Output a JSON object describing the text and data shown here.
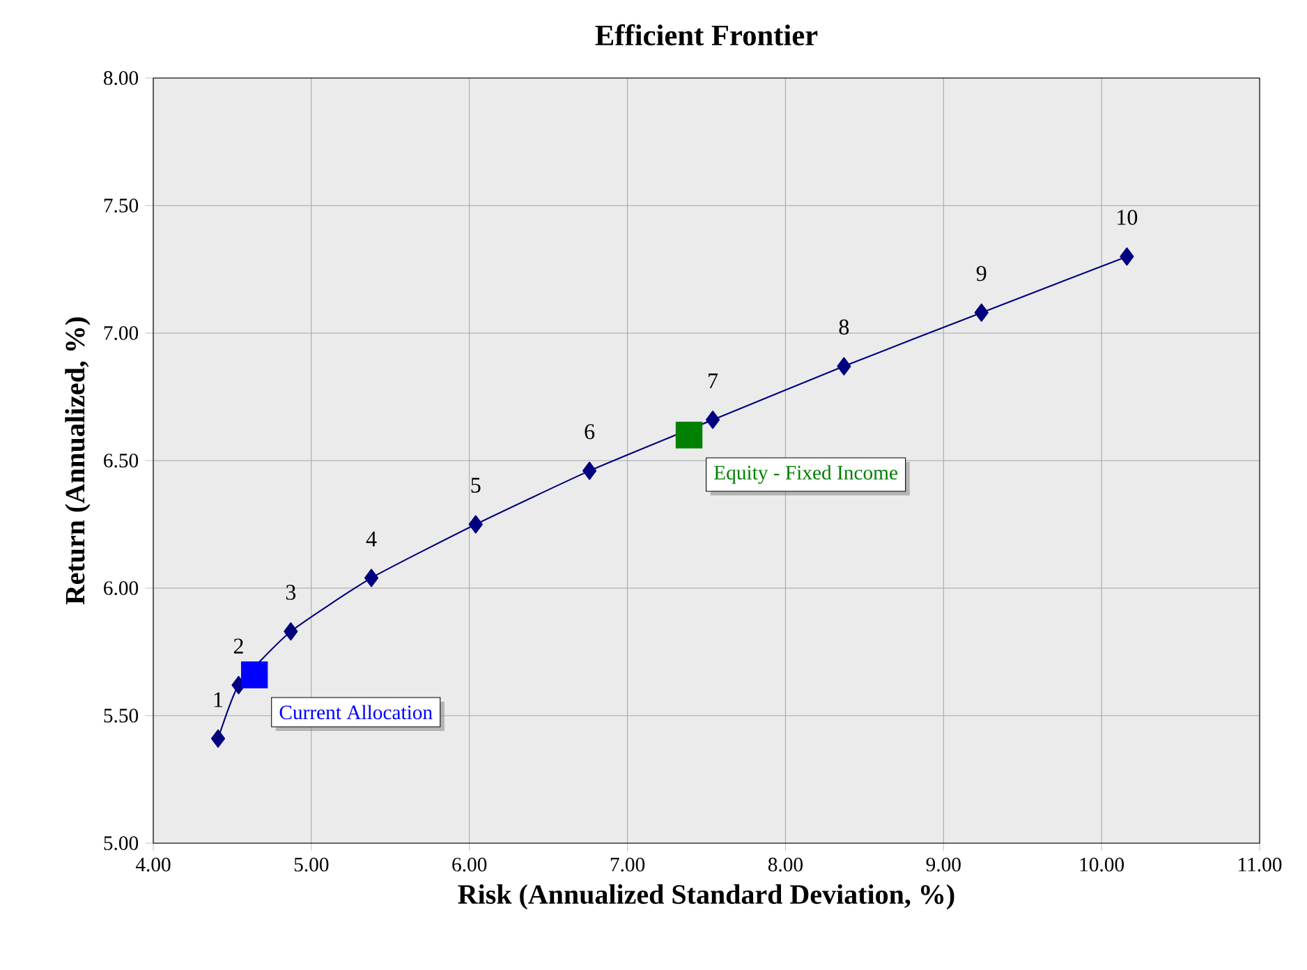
{
  "chart_data": {
    "type": "line",
    "title": "Efficient Frontier",
    "xlabel": "Risk (Annualized Standard Deviation, %)",
    "ylabel": "Return (Annualized, %)",
    "xlim": [
      4,
      11
    ],
    "ylim": [
      5,
      8
    ],
    "xticks": [
      {
        "value": 4,
        "label": "4.00"
      },
      {
        "value": 5,
        "label": "5.00"
      },
      {
        "value": 6,
        "label": "6.00"
      },
      {
        "value": 7,
        "label": "7.00"
      },
      {
        "value": 8,
        "label": "8.00"
      },
      {
        "value": 9,
        "label": "9.00"
      },
      {
        "value": 10,
        "label": "10.00"
      },
      {
        "value": 11,
        "label": "11.00"
      }
    ],
    "yticks": [
      {
        "value": 5,
        "label": "5.00"
      },
      {
        "value": 5.5,
        "label": "5.50"
      },
      {
        "value": 6,
        "label": "6.00"
      },
      {
        "value": 6.5,
        "label": "6.50"
      },
      {
        "value": 7,
        "label": "7.00"
      },
      {
        "value": 7.5,
        "label": "7.50"
      },
      {
        "value": 8,
        "label": "8.00"
      }
    ],
    "grid": true,
    "series": [
      {
        "color": "#000080",
        "marker": "diamond",
        "x": [
          4.41,
          4.54,
          4.87,
          5.38,
          6.04,
          6.76,
          7.54,
          8.37,
          9.24,
          10.16
        ],
        "values": [
          5.41,
          5.62,
          5.83,
          6.04,
          6.25,
          6.46,
          6.66,
          6.87,
          7.08,
          7.3
        ]
      },
      {
        "type": "scatter",
        "name": "Current Allocation",
        "color": "#0000ff",
        "marker": "square",
        "x": [
          4.64
        ],
        "values": [
          5.66
        ]
      },
      {
        "type": "scatter",
        "name": "Equity - Fixed Income",
        "color": "#008000",
        "marker": "square",
        "x": [
          7.39
        ],
        "values": [
          6.6
        ]
      }
    ],
    "annotations": [
      {
        "text": "1",
        "x": 4.41,
        "y": 5.41
      },
      {
        "text": "2",
        "x": 4.54,
        "y": 5.62
      },
      {
        "text": "3",
        "x": 4.87,
        "y": 5.83
      },
      {
        "text": "4",
        "x": 5.38,
        "y": 6.04
      },
      {
        "text": "5",
        "x": 6.04,
        "y": 6.25
      },
      {
        "text": "6",
        "x": 6.76,
        "y": 6.46
      },
      {
        "text": "7",
        "x": 7.54,
        "y": 6.66
      },
      {
        "text": "8",
        "x": 8.37,
        "y": 6.87
      },
      {
        "text": "9",
        "x": 9.24,
        "y": 7.08
      },
      {
        "text": "10",
        "x": 10.16,
        "y": 7.3
      }
    ]
  }
}
